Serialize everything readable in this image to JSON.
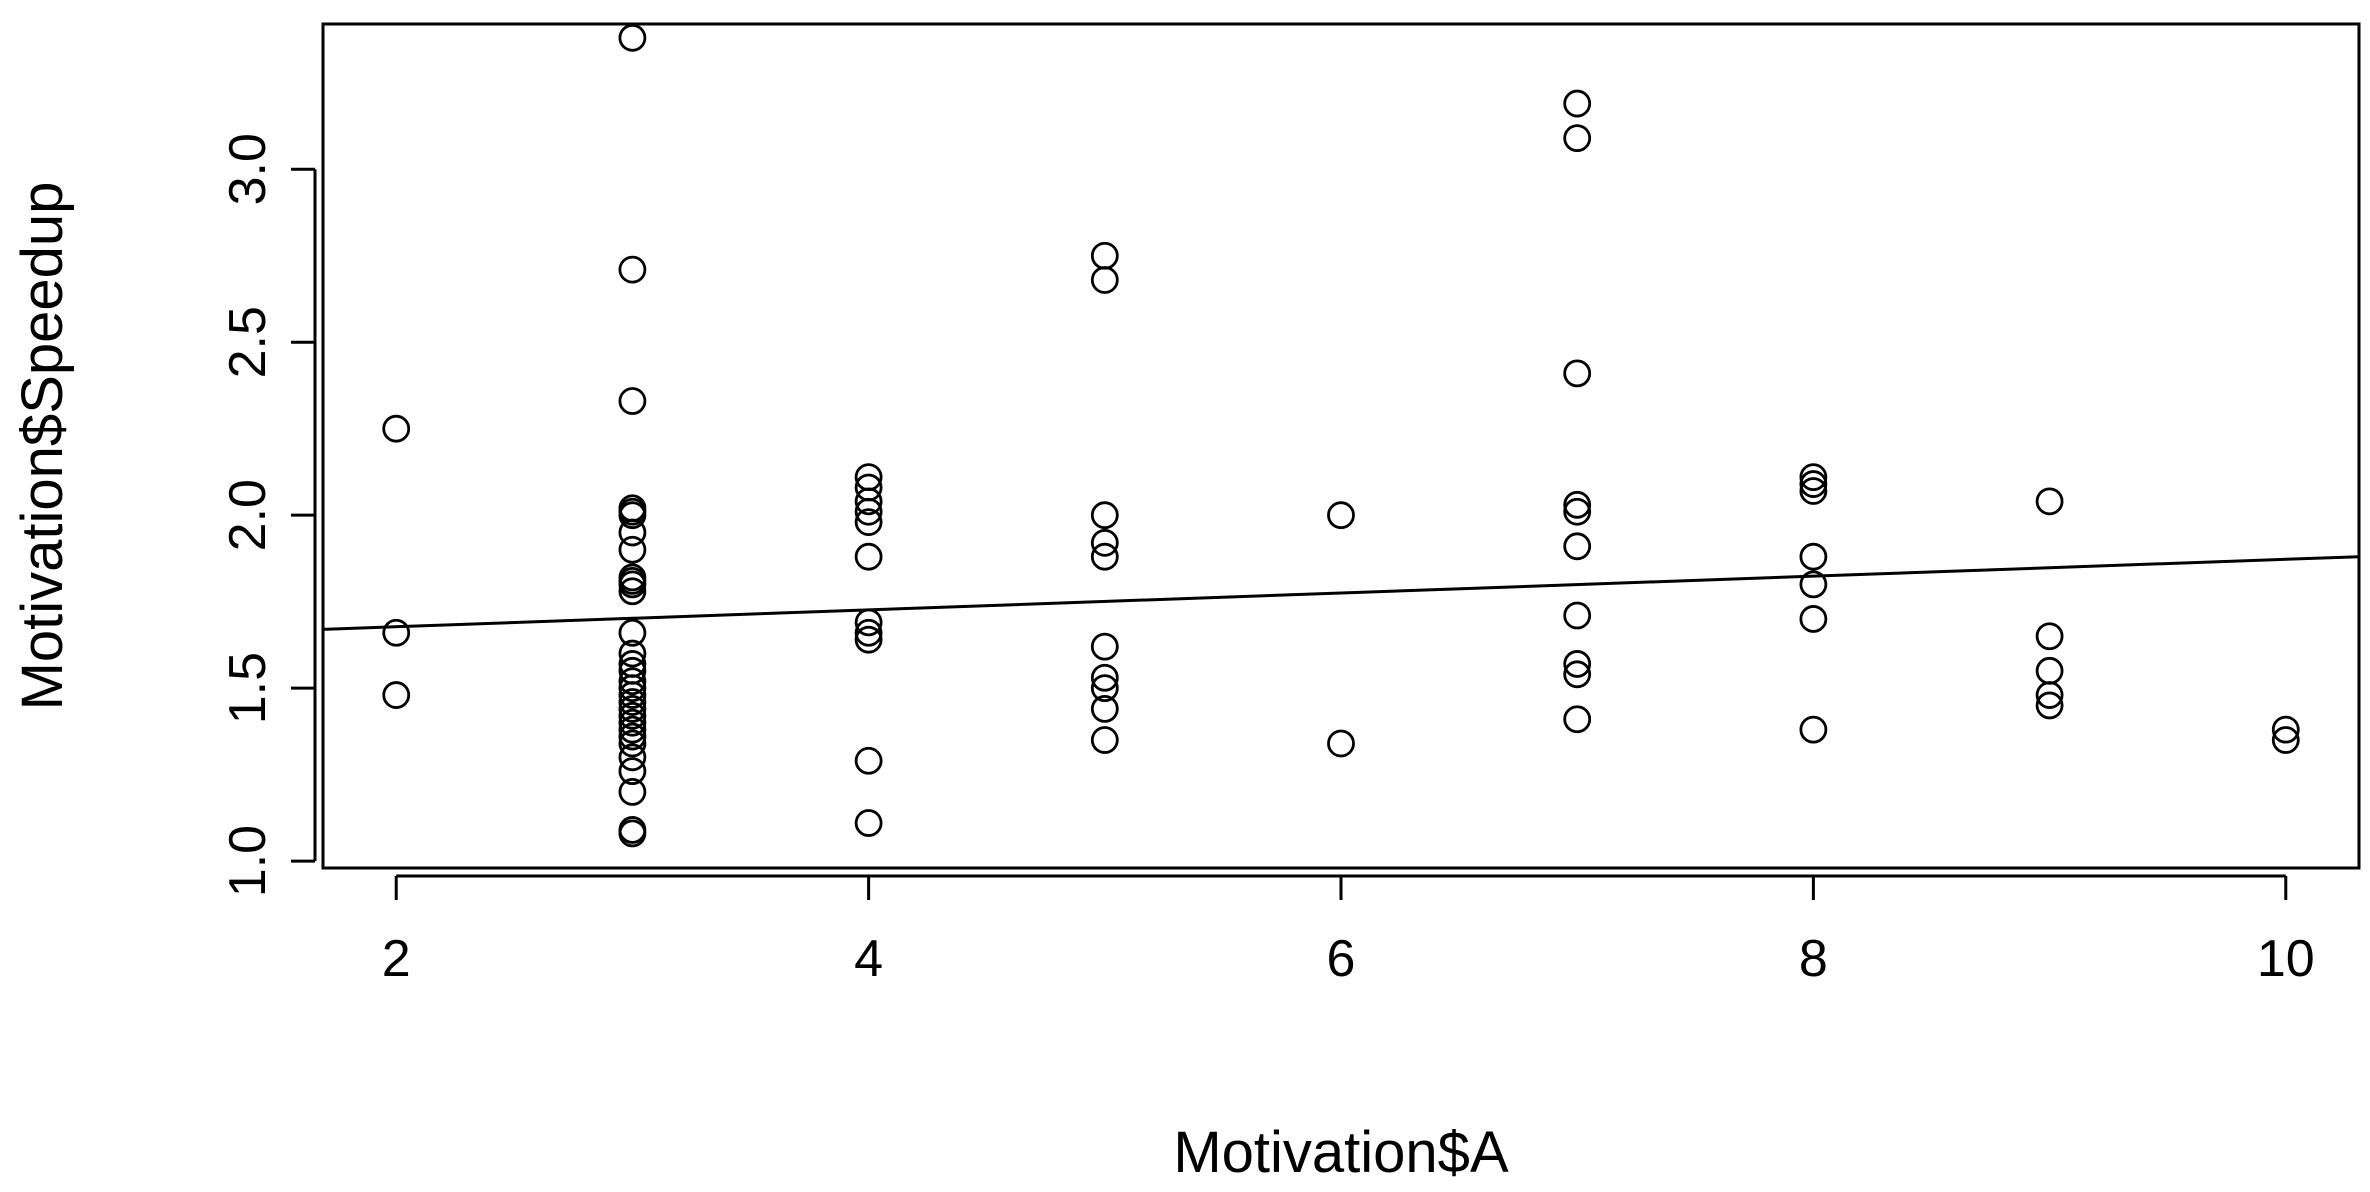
{
  "chart_data": {
    "type": "scatter",
    "xlabel": "Motivation$A",
    "ylabel": "Motivation$Speedup",
    "xlim": [
      1.69,
      10.31
    ],
    "ylim": [
      0.98,
      3.42
    ],
    "xticks": [
      2,
      4,
      6,
      8,
      10
    ],
    "yticks": [
      1.0,
      1.5,
      2.0,
      2.5,
      3.0
    ],
    "xtick_labels": [
      "2",
      "4",
      "6",
      "8",
      "10"
    ],
    "ytick_labels": [
      "1.0",
      "1.5",
      "2.0",
      "2.5",
      "3.0"
    ],
    "grid": false,
    "colors": {
      "points": "#000000",
      "line": "#000000",
      "frame": "#000000"
    },
    "points": [
      {
        "x": 2,
        "y": 2.25
      },
      {
        "x": 2,
        "y": 1.66
      },
      {
        "x": 2,
        "y": 1.48
      },
      {
        "x": 3,
        "y": 3.38
      },
      {
        "x": 3,
        "y": 2.71
      },
      {
        "x": 3,
        "y": 2.33
      },
      {
        "x": 3,
        "y": 2.02
      },
      {
        "x": 3,
        "y": 2.01
      },
      {
        "x": 3,
        "y": 2.0
      },
      {
        "x": 3,
        "y": 1.95
      },
      {
        "x": 3,
        "y": 1.9
      },
      {
        "x": 3,
        "y": 1.82
      },
      {
        "x": 3,
        "y": 1.81
      },
      {
        "x": 3,
        "y": 1.8
      },
      {
        "x": 3,
        "y": 1.78
      },
      {
        "x": 3,
        "y": 1.66
      },
      {
        "x": 3,
        "y": 1.6
      },
      {
        "x": 3,
        "y": 1.57
      },
      {
        "x": 3,
        "y": 1.55
      },
      {
        "x": 3,
        "y": 1.52
      },
      {
        "x": 3,
        "y": 1.5
      },
      {
        "x": 3,
        "y": 1.48
      },
      {
        "x": 3,
        "y": 1.46
      },
      {
        "x": 3,
        "y": 1.44
      },
      {
        "x": 3,
        "y": 1.42
      },
      {
        "x": 3,
        "y": 1.4
      },
      {
        "x": 3,
        "y": 1.38
      },
      {
        "x": 3,
        "y": 1.36
      },
      {
        "x": 3,
        "y": 1.34
      },
      {
        "x": 3,
        "y": 1.3
      },
      {
        "x": 3,
        "y": 1.26
      },
      {
        "x": 3,
        "y": 1.2
      },
      {
        "x": 3,
        "y": 1.09
      },
      {
        "x": 3,
        "y": 1.08
      },
      {
        "x": 4,
        "y": 2.11
      },
      {
        "x": 4,
        "y": 2.08
      },
      {
        "x": 4,
        "y": 2.04
      },
      {
        "x": 4,
        "y": 2.01
      },
      {
        "x": 4,
        "y": 1.98
      },
      {
        "x": 4,
        "y": 1.88
      },
      {
        "x": 4,
        "y": 1.69
      },
      {
        "x": 4,
        "y": 1.66
      },
      {
        "x": 4,
        "y": 1.64
      },
      {
        "x": 4,
        "y": 1.29
      },
      {
        "x": 4,
        "y": 1.11
      },
      {
        "x": 5,
        "y": 2.75
      },
      {
        "x": 5,
        "y": 2.68
      },
      {
        "x": 5,
        "y": 2.0
      },
      {
        "x": 5,
        "y": 1.92
      },
      {
        "x": 5,
        "y": 1.88
      },
      {
        "x": 5,
        "y": 1.62
      },
      {
        "x": 5,
        "y": 1.53
      },
      {
        "x": 5,
        "y": 1.5
      },
      {
        "x": 5,
        "y": 1.44
      },
      {
        "x": 5,
        "y": 1.35
      },
      {
        "x": 6,
        "y": 2.0
      },
      {
        "x": 6,
        "y": 1.34
      },
      {
        "x": 7,
        "y": 3.19
      },
      {
        "x": 7,
        "y": 3.09
      },
      {
        "x": 7,
        "y": 2.41
      },
      {
        "x": 7,
        "y": 2.03
      },
      {
        "x": 7,
        "y": 2.01
      },
      {
        "x": 7,
        "y": 1.91
      },
      {
        "x": 7,
        "y": 1.71
      },
      {
        "x": 7,
        "y": 1.57
      },
      {
        "x": 7,
        "y": 1.54
      },
      {
        "x": 7,
        "y": 1.41
      },
      {
        "x": 8,
        "y": 2.11
      },
      {
        "x": 8,
        "y": 2.09
      },
      {
        "x": 8,
        "y": 2.07
      },
      {
        "x": 8,
        "y": 1.88
      },
      {
        "x": 8,
        "y": 1.8
      },
      {
        "x": 8,
        "y": 1.7
      },
      {
        "x": 8,
        "y": 1.38
      },
      {
        "x": 9,
        "y": 2.04
      },
      {
        "x": 9,
        "y": 1.65
      },
      {
        "x": 9,
        "y": 1.55
      },
      {
        "x": 9,
        "y": 1.48
      },
      {
        "x": 9,
        "y": 1.45
      },
      {
        "x": 10,
        "y": 1.38
      },
      {
        "x": 10,
        "y": 1.35
      }
    ],
    "fit_line": {
      "x": [
        1.69,
        10.31
      ],
      "y": [
        1.67,
        1.88
      ]
    }
  }
}
